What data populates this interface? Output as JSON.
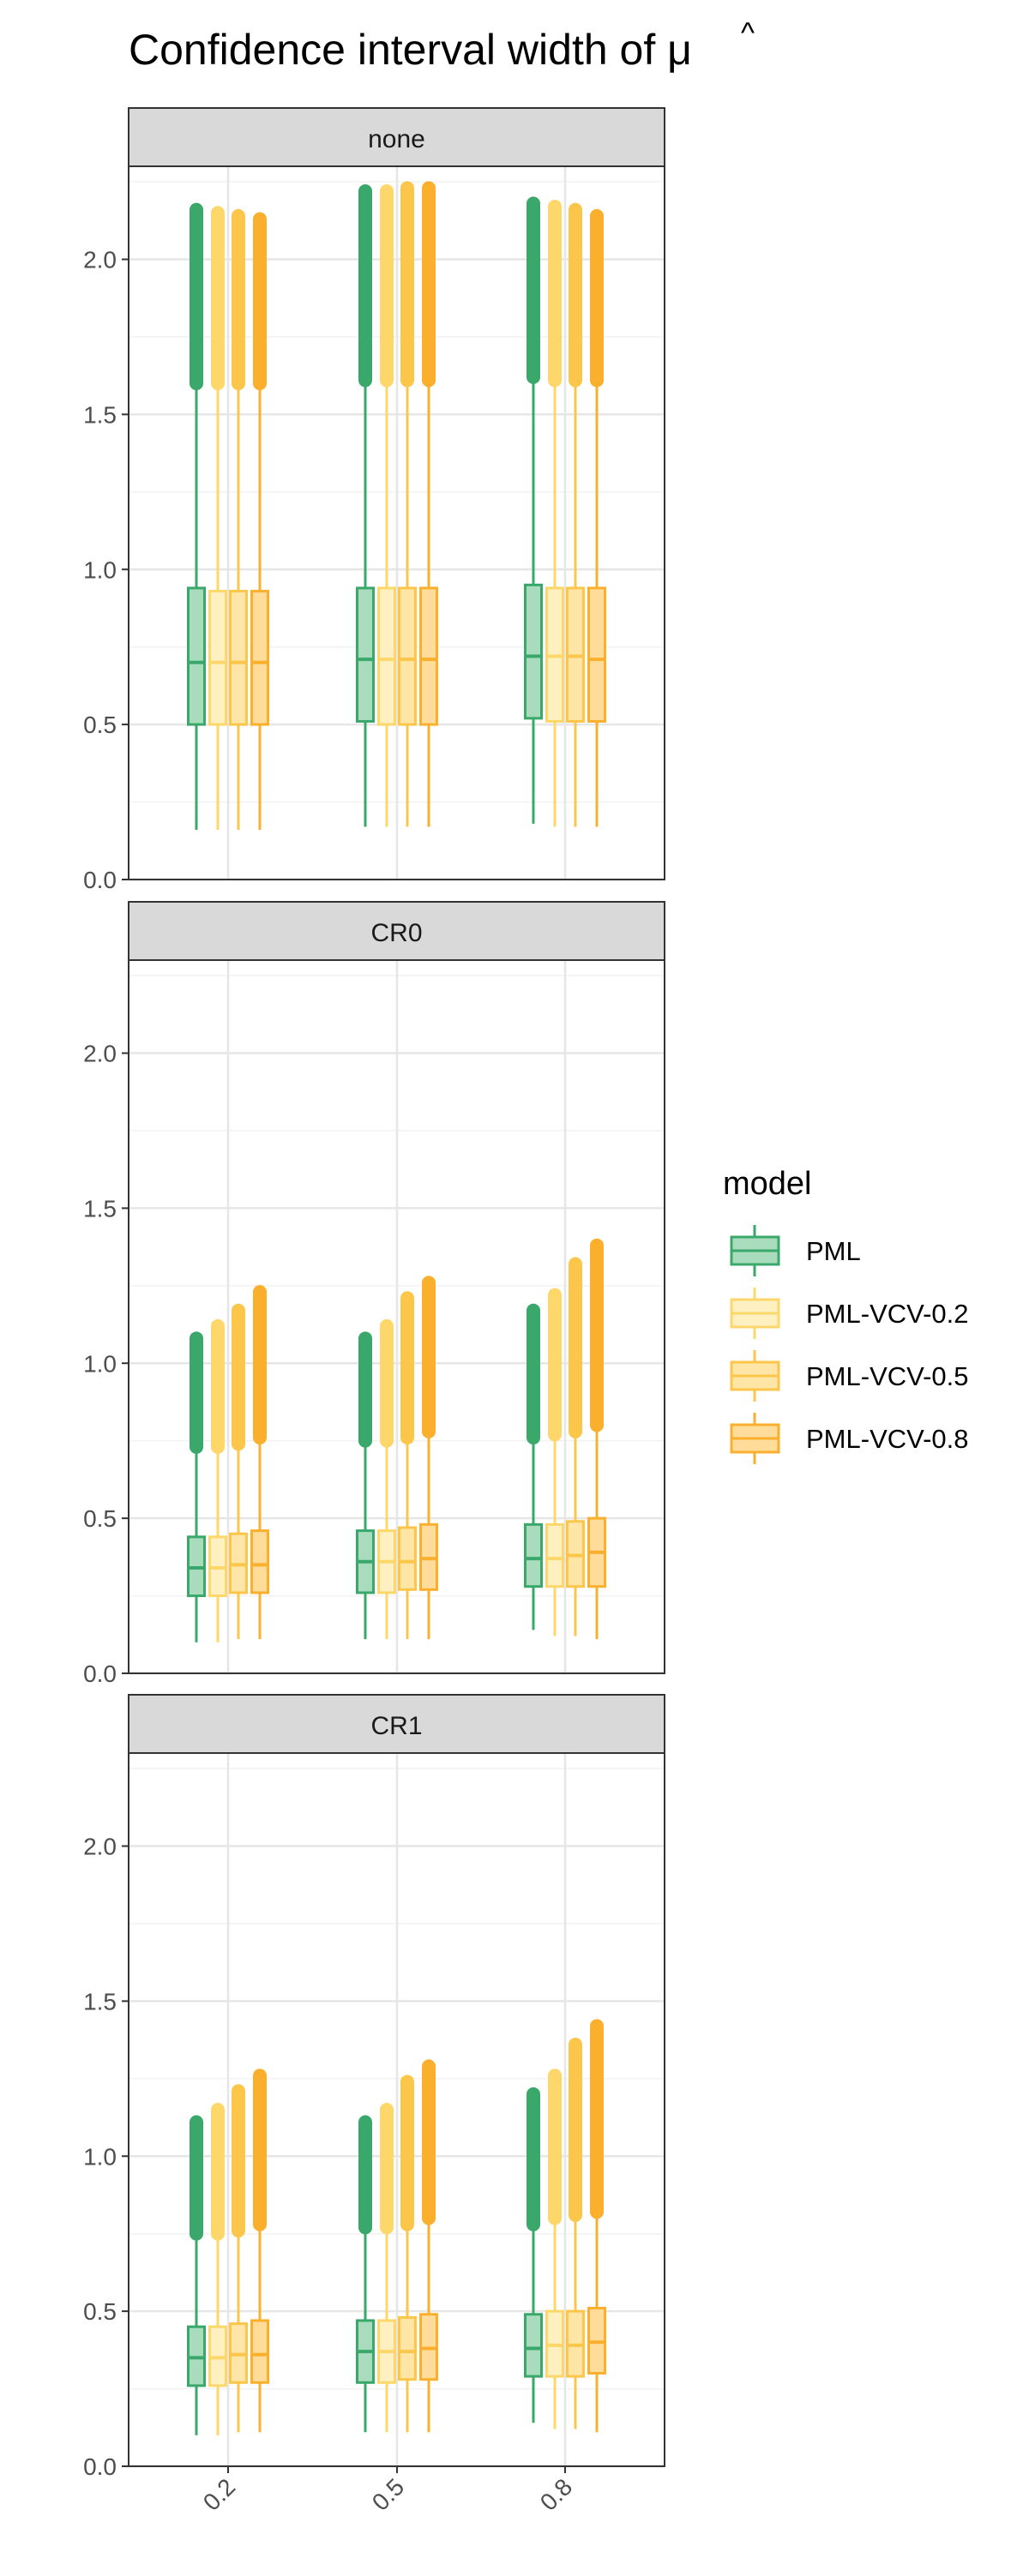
{
  "chart_data": {
    "type": "boxplot",
    "title": "Confidence interval width of μ",
    "title_text": "Confidence interval width of ",
    "title_symbol": "μ",
    "title_symbol_accent": "^",
    "x_categories": [
      "0.2",
      "0.5",
      "0.8"
    ],
    "ylim": [
      0,
      2.3
    ],
    "y_ticks": [
      0.0,
      0.5,
      1.0,
      1.5,
      2.0
    ],
    "y_tick_labels": [
      "0.0",
      "0.5",
      "1.0",
      "1.5",
      "2.0"
    ],
    "grid": true,
    "legend": {
      "title": "model",
      "position": "right",
      "items": [
        "PML",
        "PML-VCV-0.2",
        "PML-VCV-0.5",
        "PML-VCV-0.8"
      ]
    },
    "series_colors": {
      "PML": {
        "line": "#3aa86b",
        "fill": "#a9dcbd"
      },
      "PML-VCV-0.2": {
        "line": "#fdd76a",
        "fill": "#fff0c2"
      },
      "PML-VCV-0.5": {
        "line": "#fcc64a",
        "fill": "#ffe6a6"
      },
      "PML-VCV-0.8": {
        "line": "#fbb02d",
        "fill": "#ffdc99"
      }
    },
    "panels": [
      {
        "label": "none",
        "groups": [
          {
            "x": "0.2",
            "boxes": [
              {
                "model": "PML",
                "lower": 0.16,
                "q1": 0.5,
                "median": 0.7,
                "q3": 0.94,
                "upper": 1.6,
                "outlier_max": 2.16
              },
              {
                "model": "PML-VCV-0.2",
                "lower": 0.16,
                "q1": 0.5,
                "median": 0.7,
                "q3": 0.93,
                "upper": 1.6,
                "outlier_max": 2.15
              },
              {
                "model": "PML-VCV-0.5",
                "lower": 0.16,
                "q1": 0.5,
                "median": 0.7,
                "q3": 0.93,
                "upper": 1.6,
                "outlier_max": 2.14
              },
              {
                "model": "PML-VCV-0.8",
                "lower": 0.16,
                "q1": 0.5,
                "median": 0.7,
                "q3": 0.93,
                "upper": 1.6,
                "outlier_max": 2.13
              }
            ]
          },
          {
            "x": "0.5",
            "boxes": [
              {
                "model": "PML",
                "lower": 0.17,
                "q1": 0.51,
                "median": 0.71,
                "q3": 0.94,
                "upper": 1.61,
                "outlier_max": 2.22
              },
              {
                "model": "PML-VCV-0.2",
                "lower": 0.17,
                "q1": 0.5,
                "median": 0.71,
                "q3": 0.94,
                "upper": 1.61,
                "outlier_max": 2.22
              },
              {
                "model": "PML-VCV-0.5",
                "lower": 0.17,
                "q1": 0.5,
                "median": 0.71,
                "q3": 0.94,
                "upper": 1.61,
                "outlier_max": 2.23
              },
              {
                "model": "PML-VCV-0.8",
                "lower": 0.17,
                "q1": 0.5,
                "median": 0.71,
                "q3": 0.94,
                "upper": 1.61,
                "outlier_max": 2.23
              }
            ]
          },
          {
            "x": "0.8",
            "boxes": [
              {
                "model": "PML",
                "lower": 0.18,
                "q1": 0.52,
                "median": 0.72,
                "q3": 0.95,
                "upper": 1.62,
                "outlier_max": 2.18
              },
              {
                "model": "PML-VCV-0.2",
                "lower": 0.17,
                "q1": 0.51,
                "median": 0.72,
                "q3": 0.94,
                "upper": 1.61,
                "outlier_max": 2.17
              },
              {
                "model": "PML-VCV-0.5",
                "lower": 0.17,
                "q1": 0.51,
                "median": 0.72,
                "q3": 0.94,
                "upper": 1.61,
                "outlier_max": 2.16
              },
              {
                "model": "PML-VCV-0.8",
                "lower": 0.17,
                "q1": 0.51,
                "median": 0.71,
                "q3": 0.94,
                "upper": 1.61,
                "outlier_max": 2.14
              }
            ]
          }
        ]
      },
      {
        "label": "CR0",
        "groups": [
          {
            "x": "0.2",
            "boxes": [
              {
                "model": "PML",
                "lower": 0.1,
                "q1": 0.25,
                "median": 0.34,
                "q3": 0.44,
                "upper": 0.73,
                "outlier_max": 1.08
              },
              {
                "model": "PML-VCV-0.2",
                "lower": 0.1,
                "q1": 0.25,
                "median": 0.34,
                "q3": 0.44,
                "upper": 0.73,
                "outlier_max": 1.12
              },
              {
                "model": "PML-VCV-0.5",
                "lower": 0.11,
                "q1": 0.26,
                "median": 0.35,
                "q3": 0.45,
                "upper": 0.74,
                "outlier_max": 1.17
              },
              {
                "model": "PML-VCV-0.8",
                "lower": 0.11,
                "q1": 0.26,
                "median": 0.35,
                "q3": 0.46,
                "upper": 0.76,
                "outlier_max": 1.23
              }
            ]
          },
          {
            "x": "0.5",
            "boxes": [
              {
                "model": "PML",
                "lower": 0.11,
                "q1": 0.26,
                "median": 0.36,
                "q3": 0.46,
                "upper": 0.75,
                "outlier_max": 1.08
              },
              {
                "model": "PML-VCV-0.2",
                "lower": 0.11,
                "q1": 0.26,
                "median": 0.36,
                "q3": 0.46,
                "upper": 0.75,
                "outlier_max": 1.12
              },
              {
                "model": "PML-VCV-0.5",
                "lower": 0.11,
                "q1": 0.27,
                "median": 0.36,
                "q3": 0.47,
                "upper": 0.76,
                "outlier_max": 1.21
              },
              {
                "model": "PML-VCV-0.8",
                "lower": 0.11,
                "q1": 0.27,
                "median": 0.37,
                "q3": 0.48,
                "upper": 0.78,
                "outlier_max": 1.26
              }
            ]
          },
          {
            "x": "0.8",
            "boxes": [
              {
                "model": "PML",
                "lower": 0.14,
                "q1": 0.28,
                "median": 0.37,
                "q3": 0.48,
                "upper": 0.76,
                "outlier_max": 1.17
              },
              {
                "model": "PML-VCV-0.2",
                "lower": 0.12,
                "q1": 0.28,
                "median": 0.37,
                "q3": 0.48,
                "upper": 0.77,
                "outlier_max": 1.22
              },
              {
                "model": "PML-VCV-0.5",
                "lower": 0.12,
                "q1": 0.28,
                "median": 0.38,
                "q3": 0.49,
                "upper": 0.78,
                "outlier_max": 1.32
              },
              {
                "model": "PML-VCV-0.8",
                "lower": 0.11,
                "q1": 0.28,
                "median": 0.39,
                "q3": 0.5,
                "upper": 0.8,
                "outlier_max": 1.38
              }
            ]
          }
        ]
      },
      {
        "label": "CR1",
        "groups": [
          {
            "x": "0.2",
            "boxes": [
              {
                "model": "PML",
                "lower": 0.1,
                "q1": 0.26,
                "median": 0.35,
                "q3": 0.45,
                "upper": 0.75,
                "outlier_max": 1.11
              },
              {
                "model": "PML-VCV-0.2",
                "lower": 0.1,
                "q1": 0.26,
                "median": 0.35,
                "q3": 0.45,
                "upper": 0.75,
                "outlier_max": 1.15
              },
              {
                "model": "PML-VCV-0.5",
                "lower": 0.11,
                "q1": 0.27,
                "median": 0.36,
                "q3": 0.46,
                "upper": 0.76,
                "outlier_max": 1.21
              },
              {
                "model": "PML-VCV-0.8",
                "lower": 0.11,
                "q1": 0.27,
                "median": 0.36,
                "q3": 0.47,
                "upper": 0.78,
                "outlier_max": 1.26
              }
            ]
          },
          {
            "x": "0.5",
            "boxes": [
              {
                "model": "PML",
                "lower": 0.11,
                "q1": 0.27,
                "median": 0.37,
                "q3": 0.47,
                "upper": 0.77,
                "outlier_max": 1.11
              },
              {
                "model": "PML-VCV-0.2",
                "lower": 0.11,
                "q1": 0.27,
                "median": 0.37,
                "q3": 0.47,
                "upper": 0.77,
                "outlier_max": 1.15
              },
              {
                "model": "PML-VCV-0.5",
                "lower": 0.11,
                "q1": 0.28,
                "median": 0.37,
                "q3": 0.48,
                "upper": 0.78,
                "outlier_max": 1.24
              },
              {
                "model": "PML-VCV-0.8",
                "lower": 0.11,
                "q1": 0.28,
                "median": 0.38,
                "q3": 0.49,
                "upper": 0.8,
                "outlier_max": 1.29
              }
            ]
          },
          {
            "x": "0.8",
            "boxes": [
              {
                "model": "PML",
                "lower": 0.14,
                "q1": 0.29,
                "median": 0.38,
                "q3": 0.49,
                "upper": 0.78,
                "outlier_max": 1.2
              },
              {
                "model": "PML-VCV-0.2",
                "lower": 0.12,
                "q1": 0.29,
                "median": 0.39,
                "q3": 0.5,
                "upper": 0.8,
                "outlier_max": 1.26
              },
              {
                "model": "PML-VCV-0.5",
                "lower": 0.12,
                "q1": 0.29,
                "median": 0.39,
                "q3": 0.5,
                "upper": 0.81,
                "outlier_max": 1.36
              },
              {
                "model": "PML-VCV-0.8",
                "lower": 0.11,
                "q1": 0.3,
                "median": 0.4,
                "q3": 0.51,
                "upper": 0.82,
                "outlier_max": 1.42
              }
            ]
          }
        ]
      }
    ]
  }
}
